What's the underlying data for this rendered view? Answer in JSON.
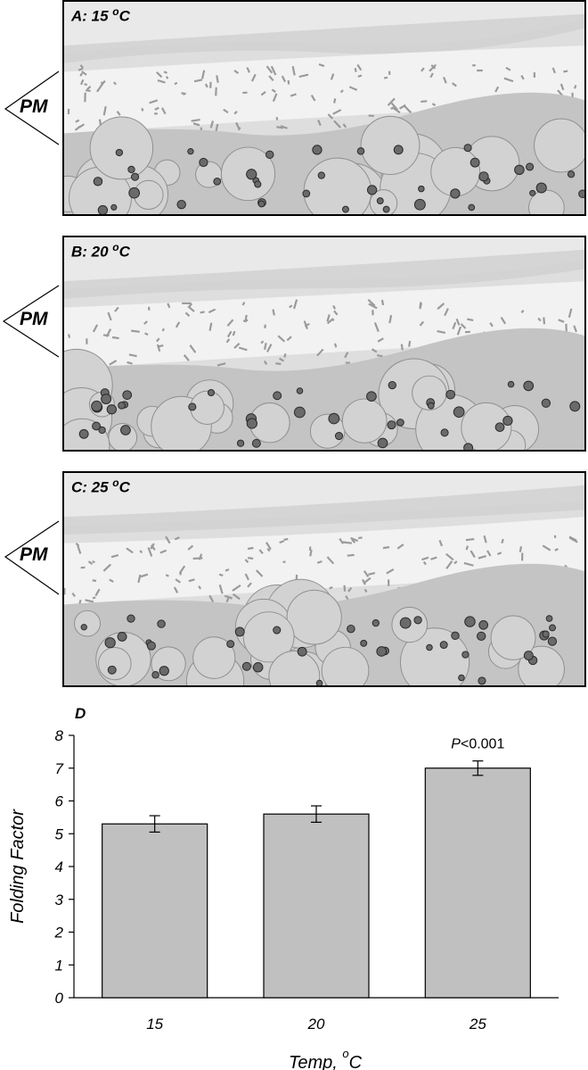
{
  "panels": [
    {
      "id": "A",
      "label_prefix": "A: 15 ",
      "deg": "o",
      "unit": "C",
      "marker": "PM"
    },
    {
      "id": "B",
      "label_prefix": "B: 20 ",
      "deg": "o",
      "unit": "C",
      "marker": "PM"
    },
    {
      "id": "C",
      "label_prefix": "C: 25 ",
      "deg": "o",
      "unit": "C",
      "marker": "PM"
    }
  ],
  "chart_data": {
    "type": "bar",
    "panel_label": "D",
    "categories": [
      "15",
      "20",
      "25"
    ],
    "values": [
      5.3,
      5.6,
      7.0
    ],
    "errors": [
      0.25,
      0.25,
      0.22
    ],
    "annotation": {
      "category": "25",
      "prefix": "P",
      "text": "<0.001"
    },
    "ylabel": "Folding Factor",
    "xlabel": "Temp,",
    "xlabel_sup": "o",
    "xlabel_unit": "C",
    "ylim": [
      0,
      8
    ],
    "yticks": [
      0,
      1,
      2,
      3,
      4,
      5,
      6,
      7,
      8
    ],
    "bar_color": "#c0c0c0",
    "grid": false,
    "legend": false
  }
}
